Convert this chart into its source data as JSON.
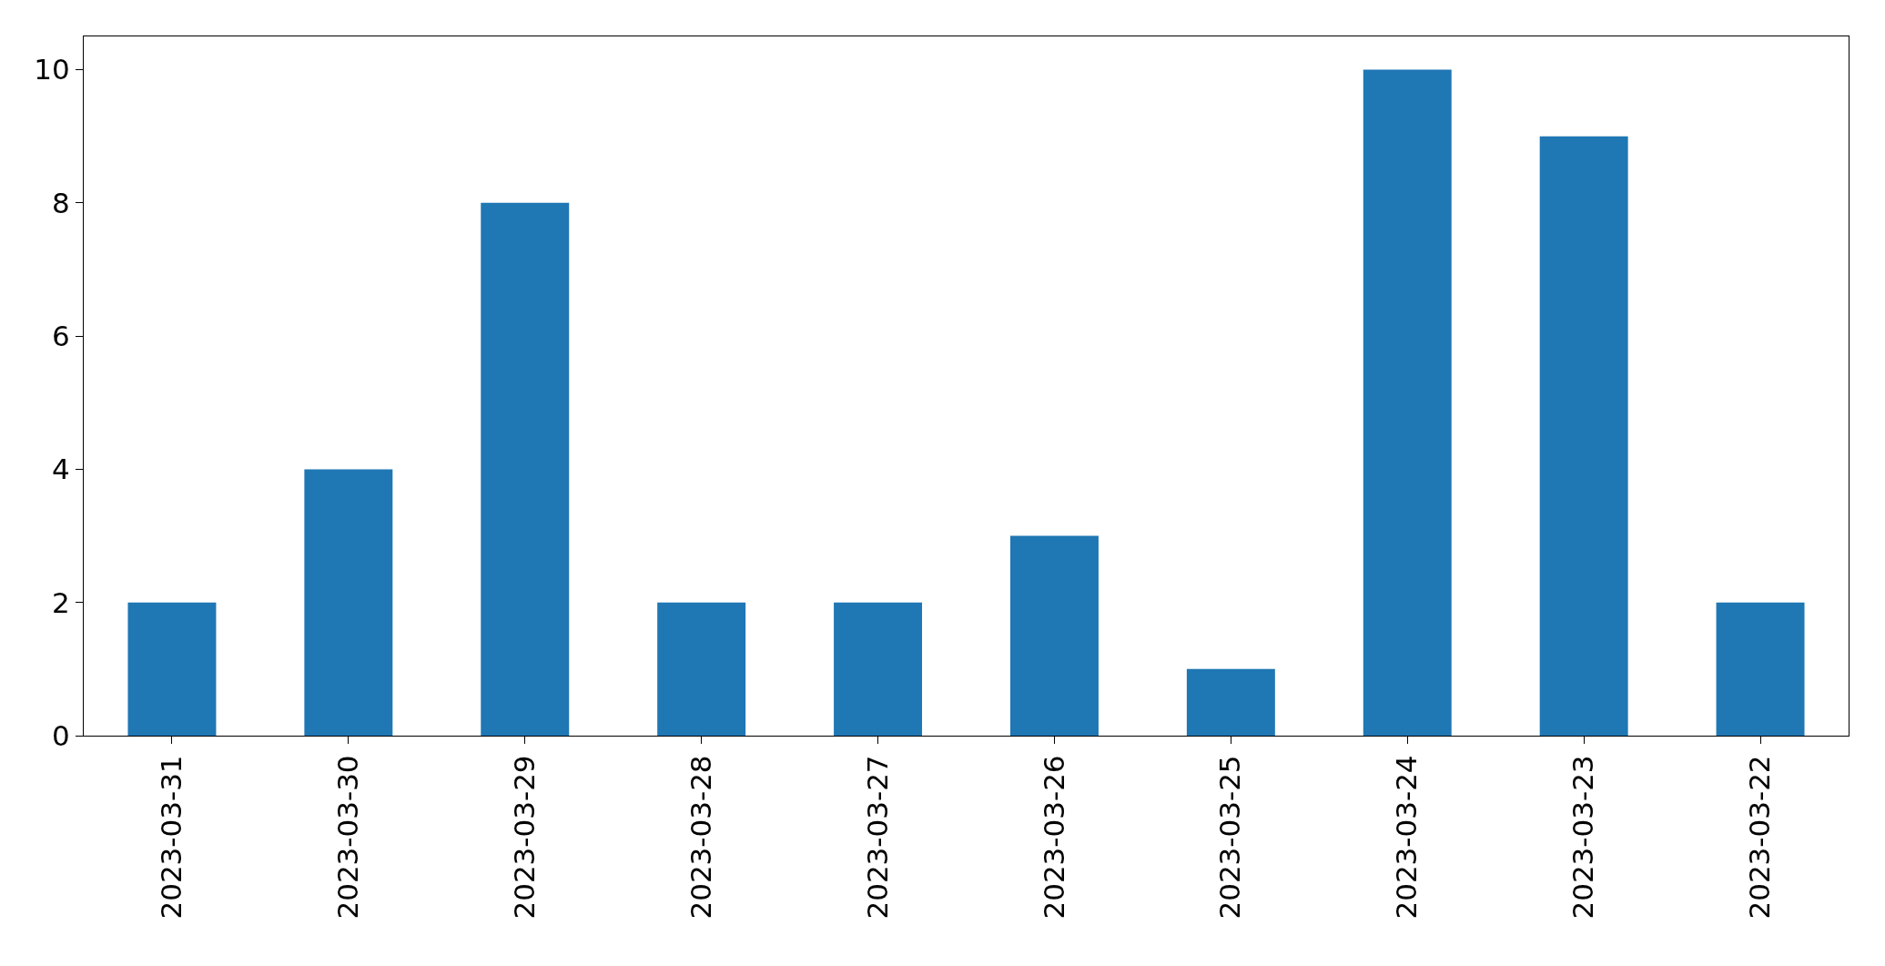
{
  "chart_data": {
    "type": "bar",
    "categories": [
      "2023-03-31",
      "2023-03-30",
      "2023-03-29",
      "2023-03-28",
      "2023-03-27",
      "2023-03-26",
      "2023-03-25",
      "2023-03-24",
      "2023-03-23",
      "2023-03-22"
    ],
    "values": [
      2,
      4,
      8,
      2,
      2,
      3,
      1,
      10,
      9,
      2
    ],
    "color": "#1f77b4",
    "ylim": [
      0,
      10.5
    ],
    "yticks": [
      0,
      2,
      4,
      6,
      8,
      10
    ]
  }
}
